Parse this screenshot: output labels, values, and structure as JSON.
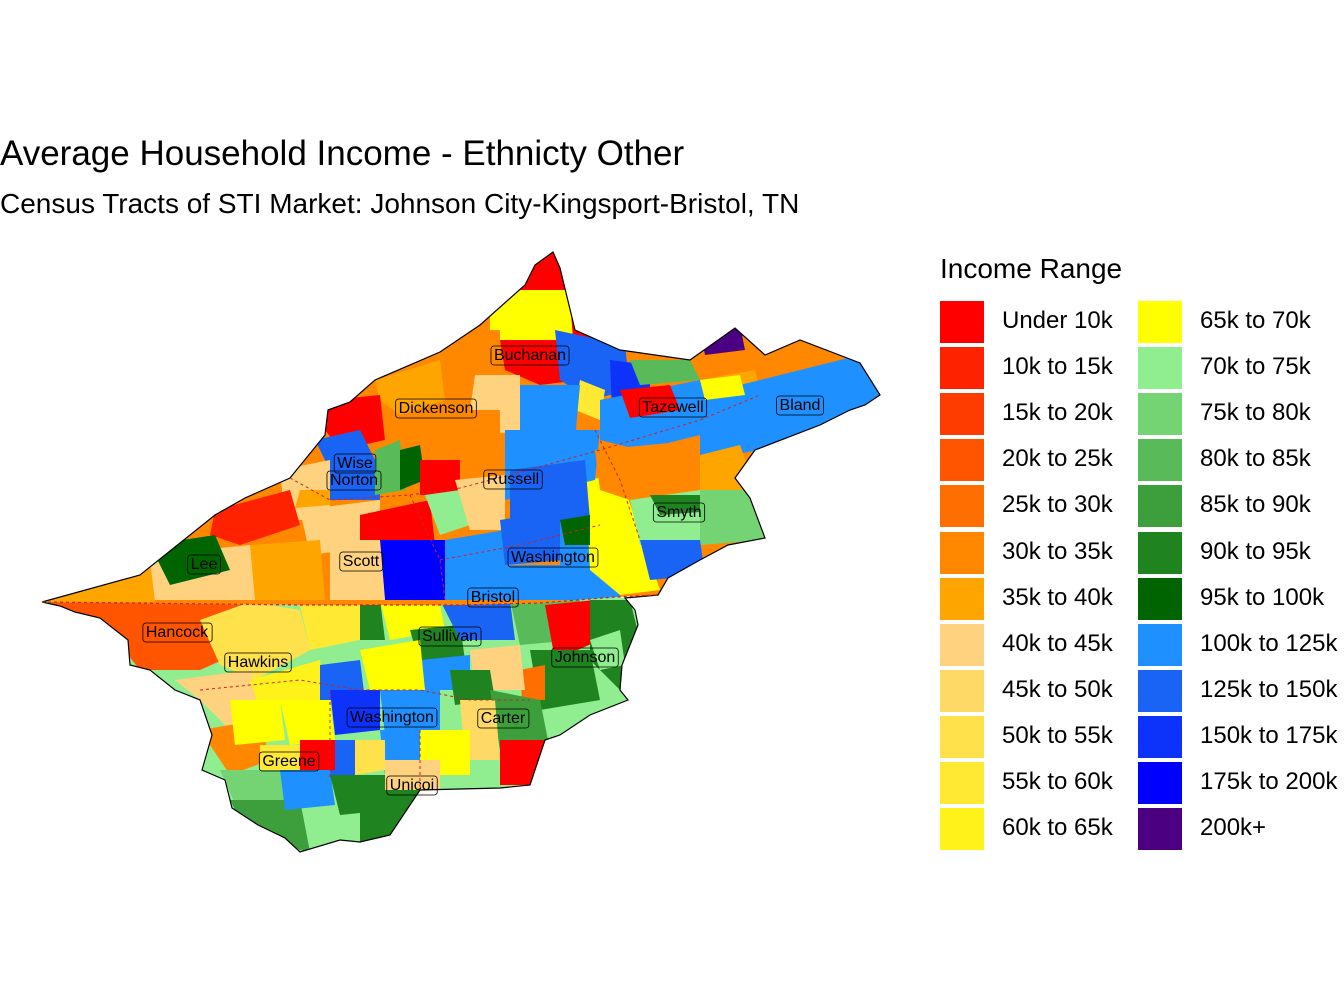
{
  "title": "Average Household Income - Ethnicty Other",
  "subtitle": "Census Tracts of STI Market: Johnson City-Kingsport-Bristol, TN",
  "legend": {
    "title": "Income Range",
    "items": [
      {
        "label": "Under 10k",
        "color": "#FF0000"
      },
      {
        "label": "10k to 15k",
        "color": "#FF2200"
      },
      {
        "label": "15k to 20k",
        "color": "#FF3C00"
      },
      {
        "label": "20k to 25k",
        "color": "#FF5500"
      },
      {
        "label": "25k to 30k",
        "color": "#FF6E00"
      },
      {
        "label": "30k to 35k",
        "color": "#FF8800"
      },
      {
        "label": "35k to 40k",
        "color": "#FFA500"
      },
      {
        "label": "40k to 45k",
        "color": "#FFD27F"
      },
      {
        "label": "45k to 50k",
        "color": "#FFD966"
      },
      {
        "label": "50k to 55k",
        "color": "#FFE14C"
      },
      {
        "label": "55k to 60k",
        "color": "#FFE933"
      },
      {
        "label": "60k to 65k",
        "color": "#FFF21A"
      },
      {
        "label": "65k to 70k",
        "color": "#FFFF00"
      },
      {
        "label": "70k to 75k",
        "color": "#90EE90"
      },
      {
        "label": "75k to 80k",
        "color": "#74D474"
      },
      {
        "label": "80k to 85k",
        "color": "#58BA58"
      },
      {
        "label": "85k to 90k",
        "color": "#3C9F3C"
      },
      {
        "label": "90k to 95k",
        "color": "#1F831F"
      },
      {
        "label": "95k to 100k",
        "color": "#006400"
      },
      {
        "label": "100k to 125k",
        "color": "#1E90FF"
      },
      {
        "label": "125k to 150k",
        "color": "#1A64F5"
      },
      {
        "label": "150k to 175k",
        "color": "#0D32FA"
      },
      {
        "label": "175k to 200k",
        "color": "#0000FF"
      },
      {
        "label": "200k+",
        "color": "#4B0082"
      }
    ]
  },
  "counties": [
    {
      "name": "Buchanan"
    },
    {
      "name": "Dickenson"
    },
    {
      "name": "Tazewell"
    },
    {
      "name": "Bland"
    },
    {
      "name": "Wise"
    },
    {
      "name": "Norton"
    },
    {
      "name": "Russell"
    },
    {
      "name": "Smyth"
    },
    {
      "name": "Lee"
    },
    {
      "name": "Scott"
    },
    {
      "name": "Washington"
    },
    {
      "name": "Bristol"
    },
    {
      "name": "Hancock"
    },
    {
      "name": "Sullivan"
    },
    {
      "name": "Johnson"
    },
    {
      "name": "Hawkins"
    },
    {
      "name": "Washington"
    },
    {
      "name": "Carter"
    },
    {
      "name": "Greene"
    },
    {
      "name": "Unicoi"
    }
  ]
}
